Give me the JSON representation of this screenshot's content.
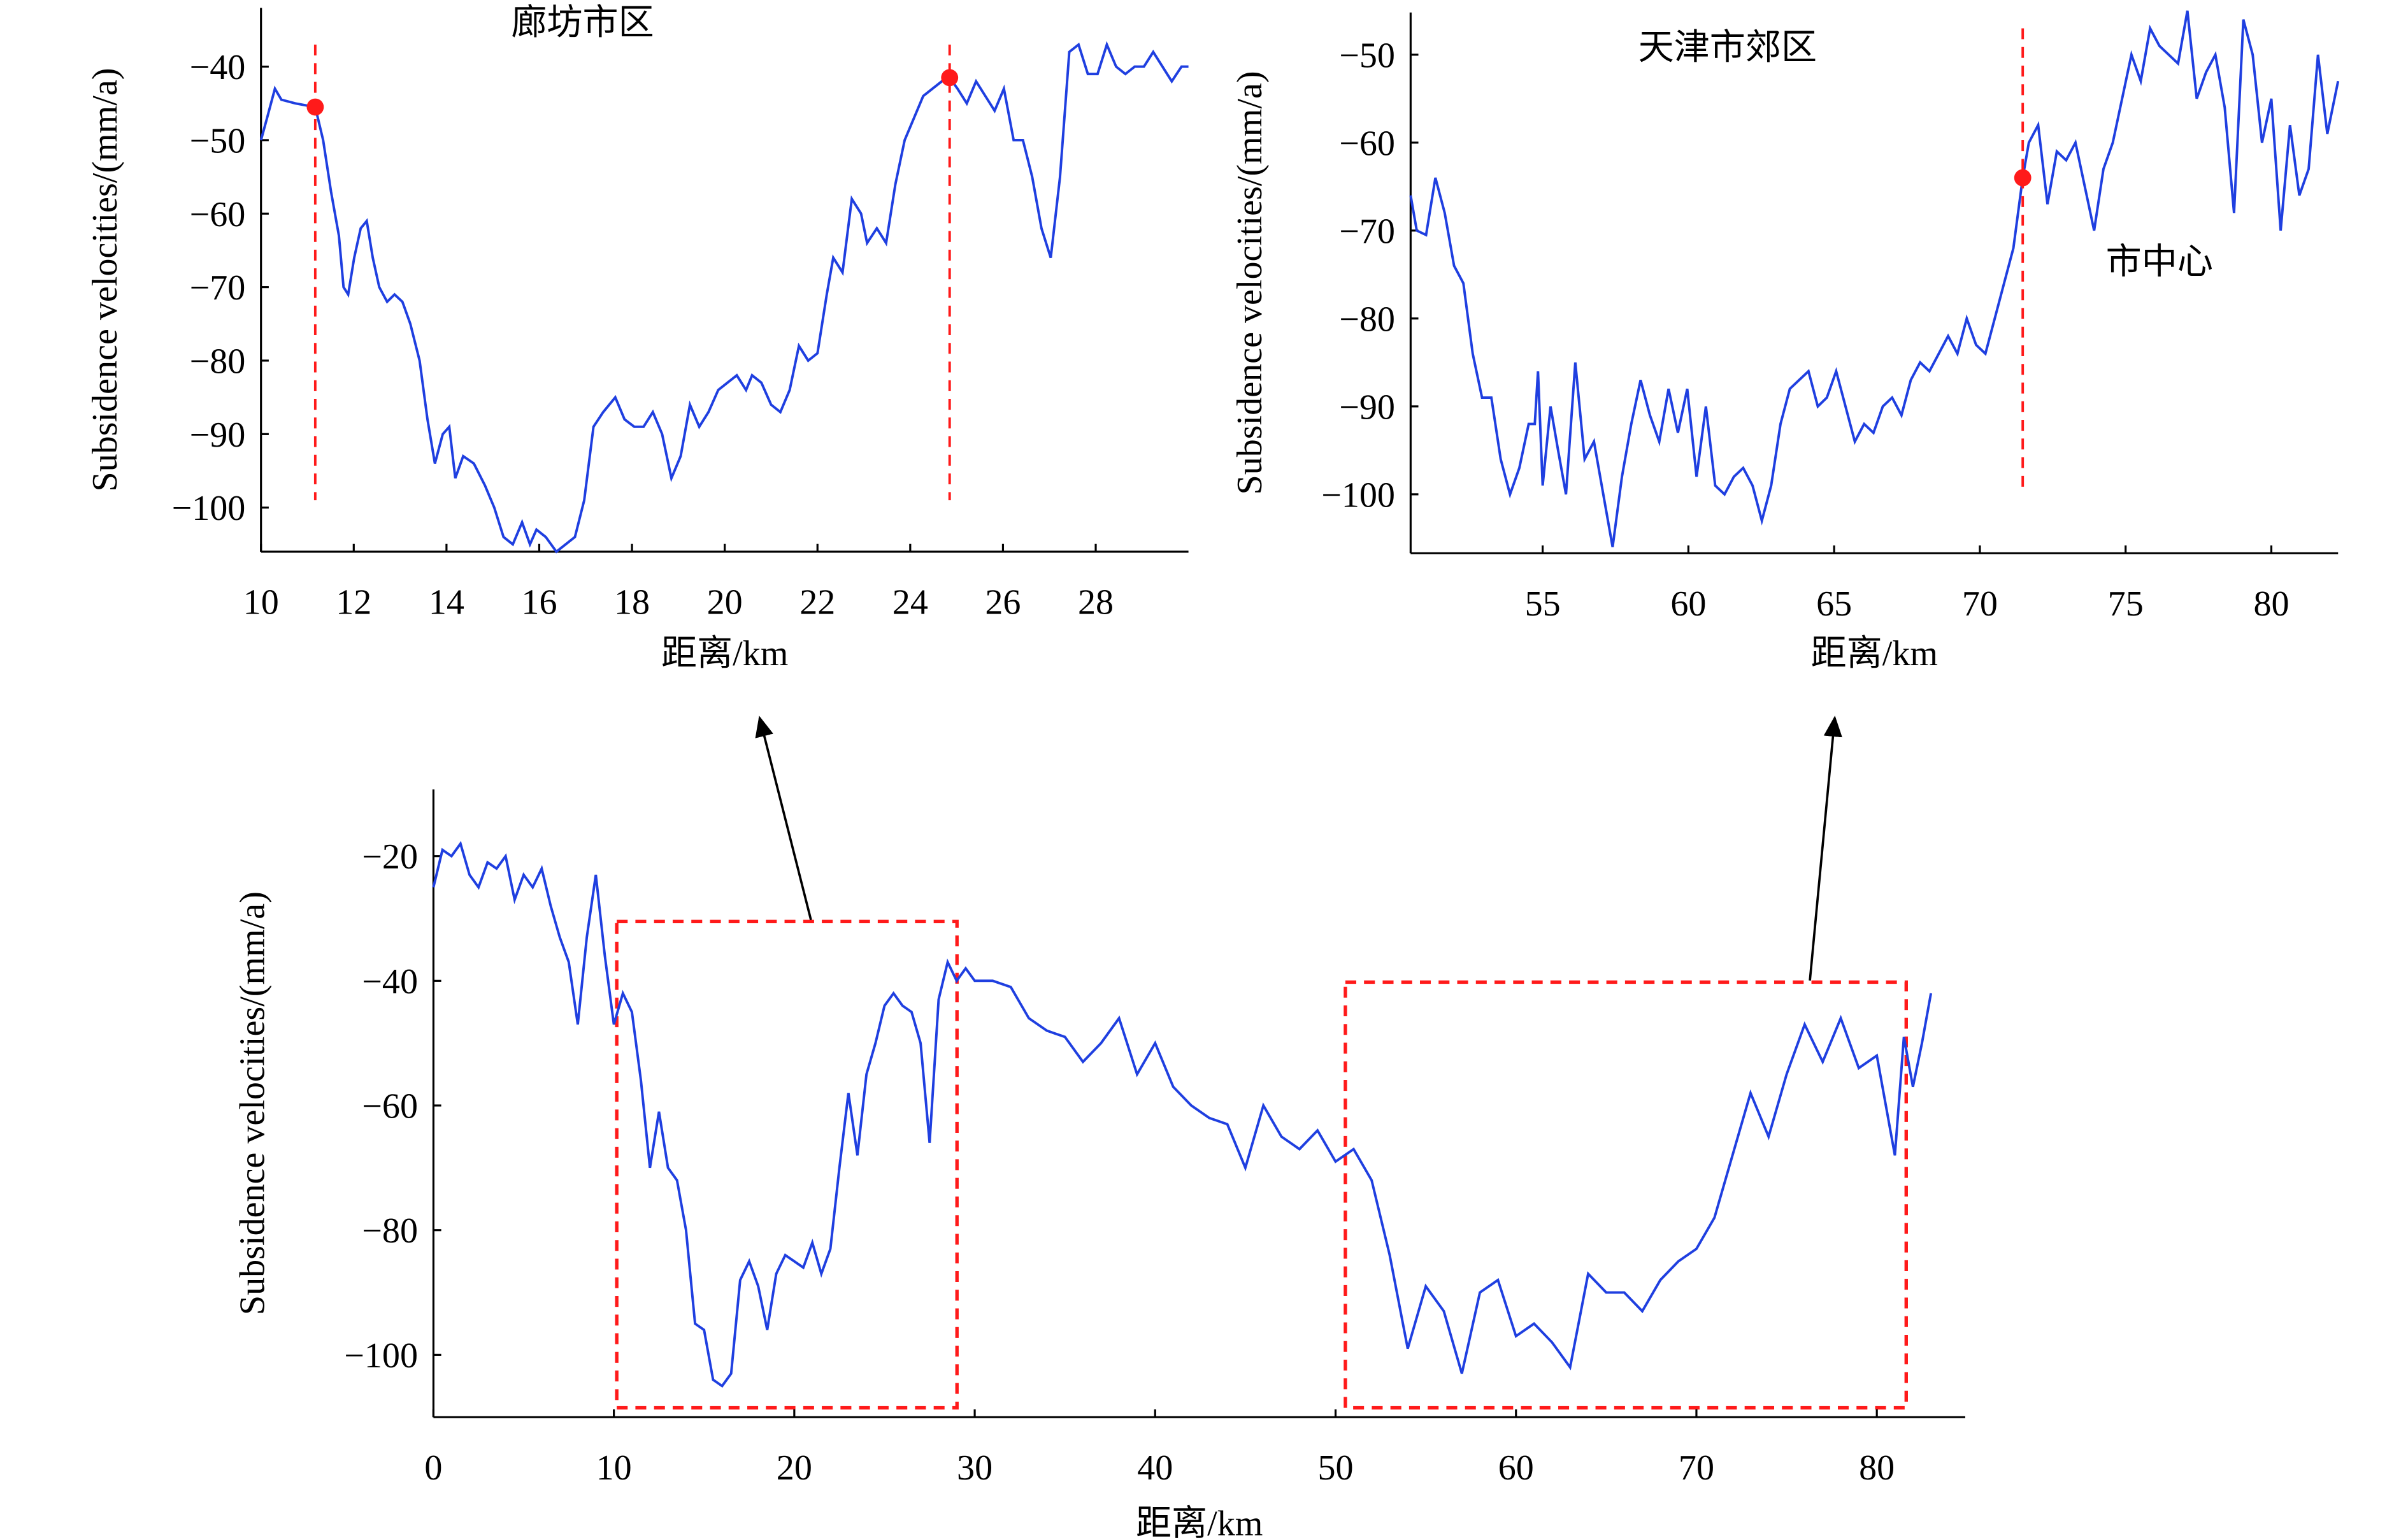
{
  "chart_data": [
    {
      "type": "line",
      "annotation": "廊坊市区",
      "xlabel": "距离/km",
      "ylabel": "Subsidence velocities/(mm/a)",
      "color": "#1f3fe0",
      "xlim": [
        10,
        30
      ],
      "ylim": [
        -106,
        -32
      ],
      "xticks": [
        10,
        12,
        14,
        16,
        18,
        20,
        22,
        24,
        26,
        28
      ],
      "yticks": [
        {
          "value": -40,
          "label": "−40"
        },
        {
          "value": -50,
          "label": "−50"
        },
        {
          "value": -60,
          "label": "−60"
        },
        {
          "value": -70,
          "label": "−70"
        },
        {
          "value": -80,
          "label": "−80"
        },
        {
          "value": -90,
          "label": "−90"
        },
        {
          "value": -100,
          "label": "−100"
        }
      ],
      "x": [
        10.0,
        10.13,
        10.3,
        10.44,
        10.74,
        11.17,
        11.34,
        11.51,
        11.68,
        11.78,
        11.88,
        12.01,
        12.15,
        12.28,
        12.41,
        12.55,
        12.72,
        12.88,
        13.05,
        13.22,
        13.42,
        13.59,
        13.75,
        13.92,
        14.06,
        14.19,
        14.36,
        14.59,
        14.83,
        15.03,
        15.23,
        15.43,
        15.63,
        15.8,
        15.94,
        16.14,
        16.37,
        16.57,
        16.77,
        16.97,
        17.17,
        17.38,
        17.64,
        17.84,
        18.05,
        18.25,
        18.45,
        18.65,
        18.85,
        19.05,
        19.25,
        19.45,
        19.65,
        19.86,
        20.06,
        20.26,
        20.46,
        20.59,
        20.79,
        21.0,
        21.2,
        21.4,
        21.6,
        21.8,
        22.0,
        22.2,
        22.34,
        22.54,
        22.74,
        22.94,
        23.07,
        23.28,
        23.48,
        23.68,
        23.88,
        24.08,
        24.28,
        24.48,
        24.68,
        24.85,
        25.02,
        25.22,
        25.42,
        25.62,
        25.82,
        26.02,
        26.23,
        26.43,
        26.63,
        26.83,
        27.03,
        27.23,
        27.43,
        27.63,
        27.83,
        28.04,
        28.24,
        28.44,
        28.64,
        28.84,
        29.04,
        29.24,
        29.44,
        29.64,
        29.85,
        30.0
      ],
      "values": [
        -50,
        -47,
        -43,
        -44.5,
        -45,
        -45.5,
        -50,
        -57,
        -63,
        -70,
        -71,
        -66,
        -62,
        -61,
        -66,
        -70,
        -72,
        -71,
        -72,
        -75,
        -80,
        -88,
        -94,
        -90,
        -89,
        -96,
        -93,
        -94,
        -97,
        -100,
        -104,
        -105,
        -102,
        -105,
        -103,
        -104,
        -106,
        -105,
        -104,
        -99,
        -89,
        -87,
        -85,
        -88,
        -89,
        -89,
        -87,
        -90,
        -96,
        -93,
        -86,
        -89,
        -87,
        -84,
        -83,
        -82,
        -84,
        -82,
        -83,
        -86,
        -87,
        -84,
        -78,
        -80,
        -79,
        -71,
        -66,
        -68,
        -58,
        -60,
        -64,
        -62,
        -64,
        -56,
        -50,
        -47,
        -44,
        -43,
        -42,
        -41.5,
        -43,
        -45,
        -42,
        -44,
        -46,
        -43,
        -50,
        -50,
        -55,
        -62,
        -66,
        -55,
        -38,
        -37,
        -41,
        -41,
        -37,
        -40,
        -41,
        -40,
        -40,
        -38,
        -40,
        -42,
        -40,
        -40
      ],
      "highlight_points": {
        "x": [
          11.17,
          24.85
        ],
        "values": [
          -45.5,
          -41.5
        ],
        "color": "#ff1a1a"
      }
    },
    {
      "type": "line",
      "annotation": "天津市郊区",
      "xlabel": "距离/km",
      "ylabel": "Subsidence velocities/(mm/a)",
      "color": "#1f3fe0",
      "xlim": [
        50.47,
        82.29
      ],
      "ylim": [
        -106.7,
        -45.2
      ],
      "xticks": [
        55,
        60,
        65,
        70,
        75,
        80
      ],
      "yticks": [
        {
          "value": -50,
          "label": "−50"
        },
        {
          "value": -60,
          "label": "−60"
        },
        {
          "value": -70,
          "label": "−70"
        },
        {
          "value": -80,
          "label": "−80"
        },
        {
          "value": -90,
          "label": "−90"
        },
        {
          "value": -100,
          "label": "−100"
        }
      ],
      "x": [
        50.47,
        50.68,
        51.0,
        51.32,
        51.64,
        51.96,
        52.28,
        52.6,
        52.92,
        53.24,
        53.56,
        53.88,
        54.2,
        54.52,
        54.73,
        54.84,
        55.0,
        55.27,
        55.53,
        55.8,
        56.12,
        56.44,
        56.76,
        57.08,
        57.4,
        57.72,
        58.04,
        58.36,
        58.68,
        59.0,
        59.32,
        59.64,
        59.96,
        60.28,
        60.6,
        60.92,
        61.24,
        61.56,
        61.88,
        62.2,
        62.52,
        62.84,
        63.16,
        63.48,
        63.8,
        64.12,
        64.44,
        64.75,
        65.07,
        65.39,
        65.71,
        66.03,
        66.35,
        66.67,
        66.99,
        67.31,
        67.63,
        67.95,
        68.27,
        68.59,
        68.91,
        69.23,
        69.55,
        69.87,
        70.19,
        70.51,
        70.83,
        71.15,
        71.47,
        71.68,
        72.0,
        72.32,
        72.64,
        72.96,
        73.28,
        73.6,
        73.92,
        74.24,
        74.56,
        74.88,
        75.2,
        75.52,
        75.84,
        76.16,
        76.48,
        76.8,
        77.12,
        77.44,
        77.76,
        78.08,
        78.4,
        78.72,
        79.04,
        79.36,
        79.68,
        80.0,
        80.32,
        80.64,
        80.96,
        81.28,
        81.6,
        81.92,
        82.29
      ],
      "values": [
        -66,
        -70,
        -70.5,
        -64,
        -68,
        -74,
        -76,
        -84,
        -89,
        -89,
        -96,
        -100,
        -97,
        -92,
        -92,
        -86,
        -99,
        -90,
        -95,
        -100,
        -85,
        -96,
        -94,
        -100,
        -106,
        -98,
        -92,
        -87,
        -91,
        -94,
        -88,
        -93,
        -88,
        -98,
        -90,
        -99,
        -100,
        -98,
        -97,
        -99,
        -103,
        -99,
        -92,
        -88,
        -87,
        -86,
        -90,
        -89,
        -86,
        -90,
        -94,
        -92,
        -93,
        -90,
        -89,
        -91,
        -87,
        -85,
        -86,
        -84,
        -82,
        -84,
        -80,
        -83,
        -84,
        -80,
        -76,
        -72,
        -64,
        -60,
        -58,
        -67,
        -61,
        -62,
        -60,
        -65,
        -70,
        -63,
        -60,
        -55,
        -50,
        -53,
        -47,
        -49,
        -50,
        -51,
        -45,
        -55,
        -52,
        -50,
        -56,
        -68,
        -46,
        -50,
        -60,
        -55,
        -70,
        -58,
        -66,
        -63,
        -50,
        -59,
        -53
      ],
      "highlight_points": {
        "x": [
          71.47
        ],
        "values": [
          -64
        ],
        "color": "#ff1a1a"
      },
      "annotation2": "市中心"
    },
    {
      "type": "line",
      "xlabel": "距离/km",
      "ylabel": "Subsidence velocities/(mm/a)",
      "color": "#1f3fe0",
      "xlim": [
        0,
        84.9
      ],
      "ylim": [
        -110,
        -9.3
      ],
      "xticks": [
        0,
        10,
        20,
        30,
        40,
        50,
        60,
        70,
        80
      ],
      "yticks": [
        {
          "value": -20,
          "label": "−20"
        },
        {
          "value": -40,
          "label": "−40"
        },
        {
          "value": -60,
          "label": "−60"
        },
        {
          "value": -80,
          "label": "−80"
        },
        {
          "value": -100,
          "label": "−100"
        }
      ],
      "x": [
        0,
        0.5,
        1,
        1.5,
        2,
        2.5,
        3,
        3.5,
        4,
        4.5,
        5,
        5.5,
        6,
        6.5,
        7,
        7.5,
        8,
        8.5,
        9,
        9.5,
        10,
        10.5,
        11,
        11.5,
        12,
        12.5,
        13,
        13.5,
        14,
        14.5,
        15,
        15.5,
        16,
        16.5,
        17,
        17.5,
        18,
        18.5,
        19,
        19.5,
        20,
        20.5,
        21,
        21.5,
        22,
        22.5,
        23,
        23.5,
        24,
        24.5,
        25,
        25.5,
        26,
        26.5,
        27,
        27.5,
        28,
        28.5,
        29,
        29.5,
        30,
        31,
        32,
        33,
        34,
        35,
        36,
        37,
        38,
        39,
        40,
        41,
        42,
        43,
        44,
        45,
        46,
        47,
        48,
        49,
        50,
        51,
        52,
        53,
        54,
        55,
        56,
        57,
        58,
        59,
        60,
        61,
        62,
        63,
        64,
        65,
        66,
        67,
        68,
        69,
        70,
        71,
        72,
        73,
        74,
        75,
        76,
        77,
        78,
        79,
        80,
        81,
        81.5,
        82,
        82.5,
        83
      ],
      "values": [
        -25,
        -19,
        -20,
        -18,
        -23,
        -25,
        -21,
        -22,
        -20,
        -27,
        -23,
        -25,
        -22,
        -28,
        -33,
        -37,
        -47,
        -33,
        -23,
        -36,
        -47,
        -42,
        -45,
        -56,
        -70,
        -61,
        -70,
        -72,
        -80,
        -95,
        -96,
        -104,
        -105,
        -103,
        -88,
        -85,
        -89,
        -96,
        -87,
        -84,
        -85,
        -86,
        -82,
        -87,
        -83,
        -70,
        -58,
        -68,
        -55,
        -50,
        -44,
        -42,
        -44,
        -45,
        -50,
        -66,
        -43,
        -37,
        -40,
        -38,
        -40,
        -40,
        -41,
        -46,
        -48,
        -49,
        -53,
        -50,
        -46,
        -55,
        -50,
        -57,
        -60,
        -62,
        -63,
        -70,
        -60,
        -65,
        -67,
        -64,
        -69,
        -67,
        -72,
        -84,
        -99,
        -89,
        -93,
        -103,
        -90,
        -88,
        -97,
        -95,
        -98,
        -102,
        -87,
        -90,
        -90,
        -93,
        -88,
        -85,
        -83,
        -78,
        -68,
        -58,
        -65,
        -55,
        -47,
        -53,
        -46,
        -54,
        -52,
        -68,
        -49,
        -57,
        -50,
        -42
      ]
    }
  ]
}
